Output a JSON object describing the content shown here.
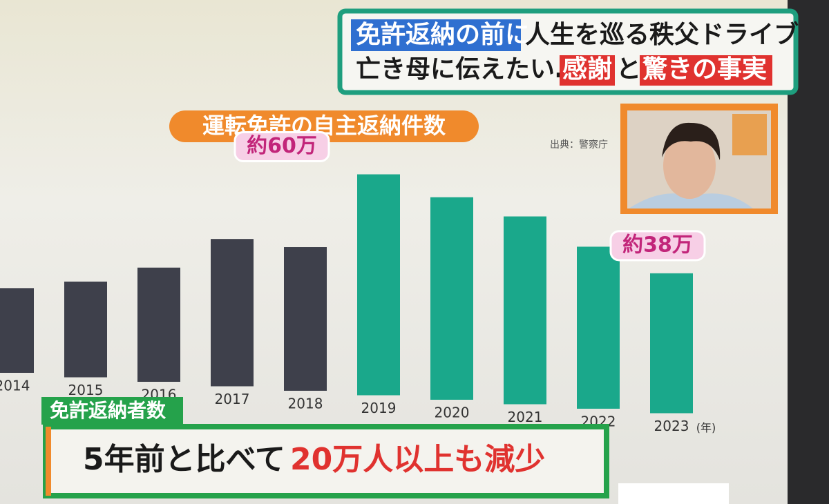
{
  "chart_data": {
    "type": "bar",
    "headline": {
      "line1": [
        "免許返納の前に",
        "人生を巡る秩父ドライブ"
      ],
      "line2": [
        "亡き母に伝えたい…",
        "感謝",
        "と",
        "驚きの事実"
      ]
    },
    "title": "運転免許の自主返納件数",
    "source": "出典：警察庁",
    "x_label": "(年)",
    "categories": [
      "2014",
      "2015",
      "2016",
      "2017",
      "2018",
      "2019",
      "2020",
      "2021",
      "2022",
      "2023"
    ],
    "values": [
      23,
      26,
      31,
      40,
      39,
      60,
      55,
      51,
      44,
      38
    ],
    "value_labels": [
      null,
      null,
      null,
      null,
      null,
      "約60万",
      null,
      null,
      null,
      "約38万"
    ],
    "colors": [
      "#3e404b",
      "#3e404b",
      "#3e404b",
      "#3e404b",
      "#3e404b",
      "#1aa88b",
      "#1aa88b",
      "#1aa88b",
      "#1aa88b",
      "#1aa88b"
    ],
    "caption": {
      "tag": "免許返納者数",
      "text": [
        "5年前と比べて",
        "20万人以上も減少"
      ]
    }
  }
}
